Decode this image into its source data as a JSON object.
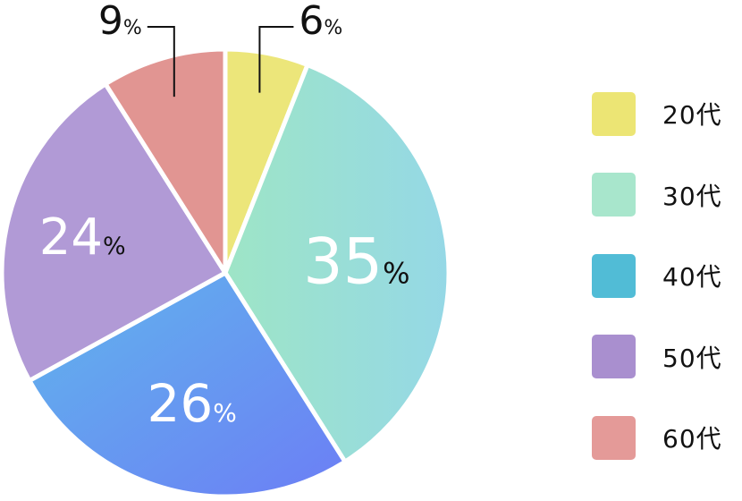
{
  "chart_data": {
    "type": "pie",
    "series": [
      {
        "category": "20代",
        "value": 6,
        "label": "6",
        "color": "#ece574"
      },
      {
        "category": "30代",
        "value": 35,
        "label": "35",
        "color": "#a8e6cc"
      },
      {
        "category": "40代",
        "value": 26,
        "label": "26",
        "color": "#51bcd6"
      },
      {
        "category": "50代",
        "value": 24,
        "label": "24",
        "color": "#a98fcf"
      },
      {
        "category": "60代",
        "value": 9,
        "label": "9",
        "color": "#e49a98"
      }
    ],
    "unit": "%",
    "legend_position": "right"
  }
}
